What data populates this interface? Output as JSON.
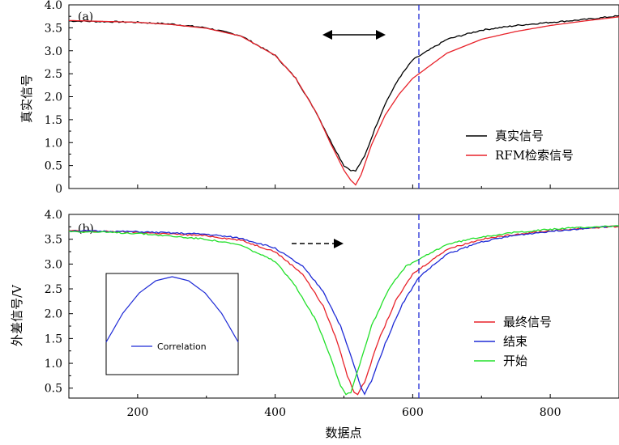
{
  "chart_data": [
    {
      "panel": "(a)",
      "type": "line",
      "xlabel": "",
      "ylabel": "真实信号",
      "xlim": [
        100,
        900
      ],
      "ylim": [
        0,
        4.0
      ],
      "yticks": [
        0,
        0.5,
        1.0,
        1.5,
        2.0,
        2.5,
        3.0,
        3.5,
        4.0
      ],
      "ytick_labels": [
        "0",
        "0.5",
        "1.0",
        "1.5",
        "2.0",
        "2.5",
        "3.0",
        "3.5",
        "4.0"
      ],
      "legend_position": "right",
      "annotations": [
        "double-headed arrow",
        "dashed vertical line at x≈517"
      ],
      "series": [
        {
          "name": "真实信号",
          "color": "#000000",
          "x": [
            100,
            200,
            250,
            300,
            350,
            400,
            430,
            460,
            480,
            500,
            510,
            517,
            530,
            545,
            560,
            580,
            600,
            650,
            700,
            750,
            800,
            850,
            900
          ],
          "y": [
            3.65,
            3.62,
            3.58,
            3.5,
            3.33,
            2.9,
            2.4,
            1.65,
            1.05,
            0.5,
            0.4,
            0.38,
            0.7,
            1.3,
            1.85,
            2.4,
            2.8,
            3.25,
            3.45,
            3.55,
            3.62,
            3.68,
            3.76
          ]
        },
        {
          "name": "RFM检索信号",
          "color": "#e8222a",
          "x": [
            100,
            200,
            250,
            300,
            350,
            400,
            430,
            460,
            480,
            500,
            510,
            517,
            525,
            540,
            560,
            580,
            600,
            650,
            700,
            750,
            800,
            850,
            900
          ],
          "y": [
            3.66,
            3.62,
            3.57,
            3.49,
            3.32,
            2.9,
            2.4,
            1.65,
            1.0,
            0.4,
            0.18,
            0.08,
            0.3,
            0.95,
            1.6,
            2.05,
            2.4,
            2.95,
            3.25,
            3.42,
            3.55,
            3.65,
            3.74
          ]
        }
      ]
    },
    {
      "panel": "(b)",
      "type": "line",
      "xlabel": "数据点",
      "ylabel": "外差信号/V",
      "xlim": [
        100,
        900
      ],
      "ylim": [
        0.3,
        4.0
      ],
      "xticks": [
        200,
        400,
        600,
        800
      ],
      "xtick_labels": [
        "200",
        "400",
        "600",
        "800"
      ],
      "yticks": [
        0.5,
        1.0,
        1.5,
        2.0,
        2.5,
        3.0,
        3.5,
        4.0
      ],
      "ytick_labels": [
        "0.5",
        "1.0",
        "1.5",
        "2.0",
        "2.5",
        "3.0",
        "3.5",
        "4.0"
      ],
      "legend_position": "right",
      "annotations": [
        "dashed arrow pointing right",
        "dashed vertical line at x≈517"
      ],
      "series": [
        {
          "name": "最终信号",
          "color": "#e8222a",
          "x": [
            100,
            200,
            300,
            350,
            400,
            440,
            470,
            490,
            505,
            515,
            520,
            530,
            550,
            575,
            600,
            650,
            700,
            750,
            800,
            850,
            900
          ],
          "y": [
            3.67,
            3.64,
            3.57,
            3.48,
            3.25,
            2.8,
            2.15,
            1.45,
            0.75,
            0.42,
            0.38,
            0.62,
            1.45,
            2.25,
            2.8,
            3.3,
            3.5,
            3.6,
            3.67,
            3.72,
            3.76
          ]
        },
        {
          "name": "结束",
          "color": "#1f2bd6",
          "x": [
            100,
            200,
            300,
            350,
            400,
            440,
            470,
            495,
            515,
            525,
            530,
            540,
            560,
            585,
            610,
            650,
            700,
            750,
            800,
            850,
            900
          ],
          "y": [
            3.67,
            3.65,
            3.6,
            3.52,
            3.32,
            2.95,
            2.45,
            1.75,
            0.95,
            0.5,
            0.38,
            0.65,
            1.4,
            2.2,
            2.75,
            3.2,
            3.45,
            3.58,
            3.66,
            3.72,
            3.77
          ]
        },
        {
          "name": "开始",
          "color": "#22e02a",
          "x": [
            100,
            200,
            300,
            350,
            400,
            430,
            460,
            480,
            495,
            503,
            510,
            520,
            540,
            565,
            590,
            650,
            700,
            750,
            800,
            850,
            900
          ],
          "y": [
            3.66,
            3.62,
            3.5,
            3.38,
            3.05,
            2.55,
            1.85,
            1.15,
            0.55,
            0.38,
            0.42,
            0.85,
            1.75,
            2.5,
            2.95,
            3.4,
            3.55,
            3.64,
            3.7,
            3.74,
            3.77
          ]
        }
      ],
      "inset": {
        "type": "line",
        "series_name": "Correlation",
        "color": "#1f2bd6",
        "x": [
          -1,
          -0.75,
          -0.5,
          -0.25,
          0,
          0.25,
          0.5,
          0.75,
          1
        ],
        "y": [
          0.2,
          0.55,
          0.8,
          0.95,
          1.0,
          0.95,
          0.8,
          0.55,
          0.2
        ]
      }
    }
  ]
}
